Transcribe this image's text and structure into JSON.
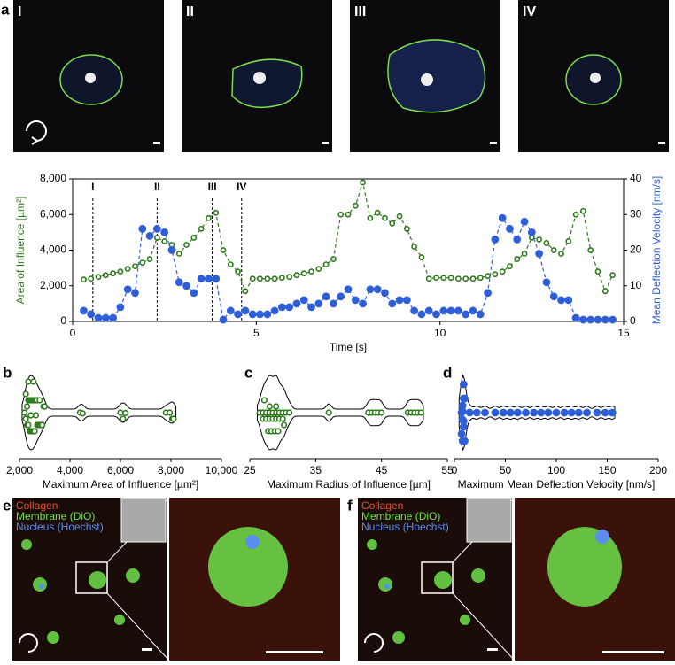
{
  "panel_labels": [
    "a",
    "b",
    "c",
    "d",
    "e",
    "f"
  ],
  "frames": [
    "I",
    "II",
    "III",
    "IV"
  ],
  "stain_legend": [
    {
      "name": "Collagen",
      "color": "#e8502e"
    },
    {
      "name": "Membrane (DiO)",
      "color": "#6ee04a"
    },
    {
      "name": "Nucleus (Hoechst)",
      "color": "#5b8cf0"
    }
  ],
  "chart_data": [
    {
      "type": "line",
      "xlabel": "Time [s]",
      "ylabel": "Area of Influence [µm²]",
      "y2label": "Mean Deflection Velocity [nm/s]",
      "x": [
        0.3,
        0.5,
        0.7,
        0.9,
        1.1,
        1.3,
        1.5,
        1.7,
        1.9,
        2.1,
        2.3,
        2.5,
        2.7,
        2.9,
        3.1,
        3.3,
        3.5,
        3.7,
        3.9,
        4.1,
        4.3,
        4.5,
        4.7,
        4.9,
        5.1,
        5.3,
        5.5,
        5.7,
        5.9,
        6.1,
        6.3,
        6.5,
        6.7,
        6.9,
        7.1,
        7.3,
        7.5,
        7.7,
        7.9,
        8.1,
        8.3,
        8.5,
        8.7,
        8.9,
        9.1,
        9.3,
        9.5,
        9.7,
        9.9,
        10.1,
        10.3,
        10.5,
        10.7,
        10.9,
        11.1,
        11.3,
        11.5,
        11.7,
        11.9,
        12.1,
        12.3,
        12.5,
        12.7,
        12.9,
        13.1,
        13.3,
        13.5,
        13.7,
        13.9,
        14.1,
        14.3,
        14.5,
        14.7
      ],
      "xlim": [
        0,
        15
      ],
      "xticks": [
        0,
        5,
        10,
        15
      ],
      "ylim": [
        0,
        8000
      ],
      "yticks": [
        0,
        {
          "value": 2000,
          "label": "2,000"
        },
        {
          "value": 4000,
          "label": "4,000"
        },
        {
          "value": 6000,
          "label": "6,000"
        },
        {
          "value": 8000,
          "label": "8,000"
        }
      ],
      "y2lim": [
        0,
        40
      ],
      "y2ticks": [
        0,
        10,
        20,
        30,
        40
      ],
      "markers": [
        {
          "label": "I",
          "x": 0.55
        },
        {
          "label": "II",
          "x": 2.3
        },
        {
          "label": "III",
          "x": 3.8
        },
        {
          "label": "IV",
          "x": 4.6
        }
      ],
      "series": [
        {
          "color": "#2e7a1c",
          "marker": "open",
          "values": [
            2350,
            2400,
            2500,
            2600,
            2700,
            2800,
            2950,
            3100,
            3300,
            3500,
            4700,
            4500,
            4300,
            3800,
            4300,
            4700,
            5200,
            5800,
            6100,
            4000,
            3200,
            2800,
            1700,
            2400,
            2400,
            2400,
            2400,
            2450,
            2500,
            2600,
            2700,
            2800,
            2950,
            3200,
            3500,
            6000,
            6000,
            6500,
            7800,
            5800,
            6100,
            5800,
            5500,
            5900,
            5200,
            4200,
            3600,
            2400,
            2450,
            2450,
            2450,
            2400,
            2400,
            2400,
            2450,
            2550,
            2650,
            2800,
            3100,
            3500,
            3800,
            4700,
            4600,
            4400,
            4000,
            3800,
            4500,
            6000,
            6200,
            4000,
            2800,
            1700,
            2600
          ]
        },
        {
          "color": "#2f5fd8",
          "marker": "filled",
          "axis": "y2",
          "values": [
            3,
            2,
            1,
            1,
            1,
            4,
            9,
            8,
            26,
            24,
            26,
            25,
            20,
            11,
            10,
            8,
            12,
            12,
            12,
            0.5,
            3,
            2,
            3,
            2,
            2,
            2,
            3,
            4,
            4,
            5,
            6,
            4,
            5,
            7,
            5,
            7,
            9,
            6,
            5,
            9,
            9,
            8,
            5,
            6,
            6,
            3,
            2,
            3,
            2,
            3,
            3,
            3,
            2,
            3,
            2,
            8,
            23,
            29,
            26,
            23,
            28,
            25,
            19,
            11,
            7,
            6,
            6,
            1,
            0.5,
            0.5,
            0.5,
            0.5,
            0.5
          ]
        }
      ]
    },
    {
      "type": "violin",
      "xlabel": "Maximum Area of Influence [µm²]",
      "color": "#2e7a1c",
      "marker": "open",
      "xlim": [
        2000,
        10000
      ],
      "xticks": [
        {
          "value": 2000,
          "label": "2,000"
        },
        {
          "value": 4000,
          "label": "4,000"
        },
        {
          "value": 6000,
          "label": "6,000"
        },
        {
          "value": 8000,
          "label": "8,000"
        },
        {
          "value": 10000,
          "label": "10,000"
        }
      ],
      "values": [
        2200,
        2250,
        2300,
        2300,
        2350,
        2350,
        2400,
        2400,
        2450,
        2450,
        2500,
        2500,
        2550,
        2550,
        2600,
        2600,
        2650,
        2700,
        2700,
        2750,
        2800,
        2800,
        2850,
        2900,
        2950,
        3000,
        2250,
        2350,
        2450,
        2550,
        2650,
        4400,
        4500,
        6000,
        6100,
        6200,
        7800,
        7950,
        8050,
        8100
      ]
    },
    {
      "type": "violin",
      "xlabel": "Maximum Radius of Influence [µm]",
      "color": "#2e7a1c",
      "marker": "open",
      "xlim": [
        25,
        55
      ],
      "xticks": [
        25,
        35,
        45,
        55
      ],
      "values": [
        26.5,
        27,
        27,
        27.5,
        27.5,
        28,
        28,
        28,
        28.5,
        28.5,
        29,
        29,
        29,
        29.5,
        29.5,
        30,
        30,
        30.5,
        31,
        27.2,
        27.8,
        28.3,
        28.8,
        29.3,
        30.2,
        37,
        43,
        43.5,
        44,
        44.5,
        45,
        49,
        49.5,
        50,
        50.5,
        51
      ]
    },
    {
      "type": "violin",
      "xlabel": "Maximum Mean Deflection Velocity [nm/s]",
      "color": "#2f5fd8",
      "marker": "filled",
      "xlim": [
        0,
        200
      ],
      "xticks": [
        0,
        50,
        100,
        150,
        200
      ],
      "values": [
        7,
        8,
        8,
        9,
        9,
        10,
        7,
        8,
        9,
        10,
        8,
        9,
        15,
        22,
        30,
        40,
        48,
        55,
        62,
        70,
        78,
        85,
        92,
        100,
        108,
        115,
        122,
        130,
        140,
        148,
        155
      ]
    }
  ]
}
